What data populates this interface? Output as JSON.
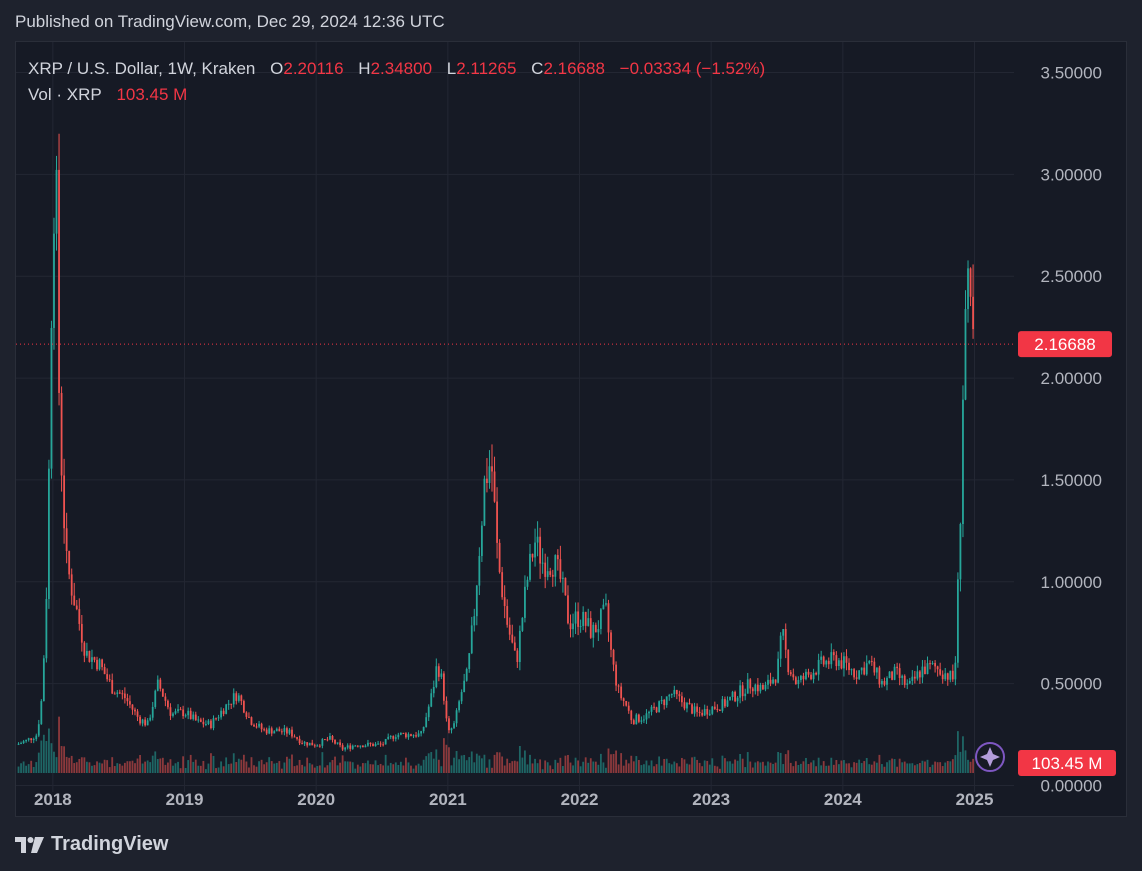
{
  "header": {
    "published": "Published on TradingView.com, Dec 29, 2024 12:36 UTC"
  },
  "legend": {
    "symbol": "XRP / U.S. Dollar, 1W, Kraken",
    "o_label": "O",
    "o_value": "2.20116",
    "h_label": "H",
    "h_value": "2.34800",
    "l_label": "L",
    "l_value": "2.11265",
    "c_label": "C",
    "c_value": "2.16688",
    "change": "−0.03334 (−1.52%)",
    "vol_label": "Vol · XRP",
    "vol_value": "103.45 M"
  },
  "price_tag": "2.16688",
  "volume_tag": "103.45 M",
  "footer": {
    "brand": "TradingView"
  },
  "colors": {
    "up": "#26a69a",
    "down": "#ef5350",
    "tag": "#f23645",
    "grid": "#232733",
    "axis_text": "#b2b5be",
    "accent": "#7e57c2"
  },
  "icons": {
    "brand": "tradingview-logo-icon",
    "assistant": "sparkle-icon"
  },
  "chart_data": {
    "type": "candlestick",
    "title": "XRP / U.S. Dollar, 1W, Kraken",
    "ylim": [
      -0.15,
      3.65
    ],
    "yticks": [
      "3.50000",
      "3.00000",
      "2.50000",
      "2.00000",
      "1.50000",
      "1.00000",
      "0.50000",
      "0.00000"
    ],
    "ytick_values": [
      3.5,
      3.0,
      2.5,
      2.0,
      1.5,
      1.0,
      0.5,
      0.0
    ],
    "xticks": [
      "2018",
      "2019",
      "2020",
      "2021",
      "2022",
      "2023",
      "2024",
      "2025"
    ],
    "xtick_values": [
      2018.0,
      2019.0,
      2020.0,
      2021.0,
      2022.0,
      2023.0,
      2024.0,
      2025.0
    ],
    "xlim": [
      2017.72,
      2025.3
    ],
    "last_price": 2.16688,
    "approx_close_path": {
      "x": [
        2017.72,
        2017.8,
        2017.88,
        2017.92,
        2017.96,
        2017.99,
        2018.02,
        2018.05,
        2018.1,
        2018.15,
        2018.25,
        2018.35,
        2018.45,
        2018.55,
        2018.65,
        2018.72,
        2018.8,
        2018.9,
        2019.0,
        2019.1,
        2019.2,
        2019.3,
        2019.4,
        2019.5,
        2019.6,
        2019.7,
        2019.8,
        2019.9,
        2020.0,
        2020.1,
        2020.2,
        2020.3,
        2020.4,
        2020.5,
        2020.6,
        2020.7,
        2020.8,
        2020.88,
        2020.92,
        2020.96,
        2021.0,
        2021.05,
        2021.1,
        2021.15,
        2021.2,
        2021.28,
        2021.33,
        2021.38,
        2021.45,
        2021.52,
        2021.6,
        2021.66,
        2021.72,
        2021.8,
        2021.86,
        2021.92,
        2022.0,
        2022.1,
        2022.2,
        2022.25,
        2022.3,
        2022.35,
        2022.4,
        2022.5,
        2022.6,
        2022.7,
        2022.8,
        2022.9,
        2023.0,
        2023.1,
        2023.2,
        2023.3,
        2023.4,
        2023.5,
        2023.54,
        2023.58,
        2023.65,
        2023.75,
        2023.85,
        2023.95,
        2024.0,
        2024.1,
        2024.2,
        2024.3,
        2024.4,
        2024.5,
        2024.6,
        2024.7,
        2024.78,
        2024.84,
        2024.86,
        2024.88,
        2024.9,
        2024.92,
        2024.94,
        2024.96,
        2024.98,
        2025.0
      ],
      "y": [
        0.2,
        0.22,
        0.25,
        0.45,
        1.1,
        2.4,
        3.2,
        1.8,
        1.1,
        0.95,
        0.65,
        0.6,
        0.48,
        0.43,
        0.33,
        0.3,
        0.5,
        0.35,
        0.36,
        0.31,
        0.3,
        0.38,
        0.45,
        0.32,
        0.27,
        0.27,
        0.26,
        0.21,
        0.2,
        0.23,
        0.18,
        0.2,
        0.2,
        0.2,
        0.25,
        0.25,
        0.25,
        0.45,
        0.6,
        0.5,
        0.25,
        0.3,
        0.45,
        0.55,
        0.85,
        1.5,
        1.6,
        1.1,
        0.8,
        0.6,
        1.0,
        1.2,
        1.1,
        1.1,
        1.0,
        0.8,
        0.83,
        0.75,
        0.85,
        0.6,
        0.45,
        0.4,
        0.32,
        0.34,
        0.39,
        0.45,
        0.4,
        0.35,
        0.38,
        0.4,
        0.45,
        0.5,
        0.47,
        0.55,
        0.75,
        0.6,
        0.5,
        0.55,
        0.6,
        0.62,
        0.6,
        0.55,
        0.6,
        0.5,
        0.55,
        0.48,
        0.57,
        0.58,
        0.55,
        0.52,
        0.65,
        1.1,
        1.5,
        2.2,
        2.4,
        2.35,
        2.2,
        2.17
      ]
    },
    "volume_axis_label": "Vol · XRP",
    "last_volume": "103.45 M"
  }
}
